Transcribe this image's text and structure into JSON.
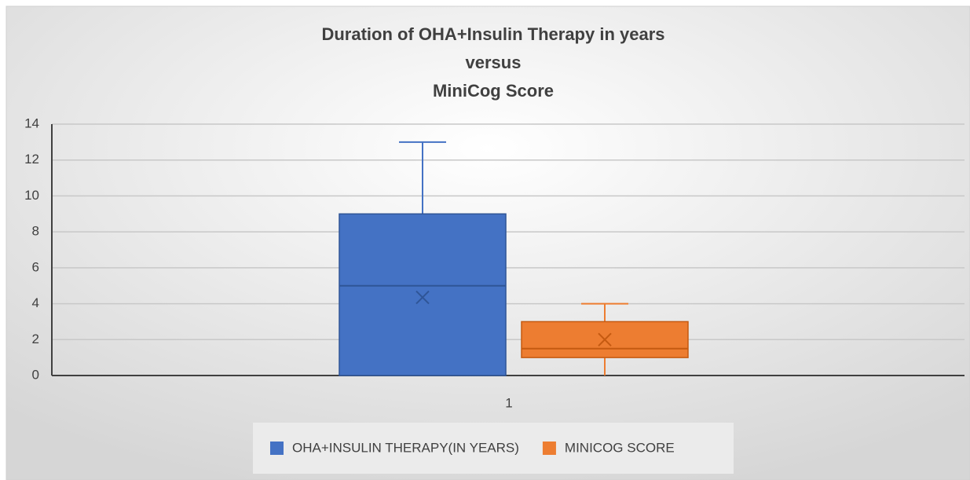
{
  "chart_data": {
    "type": "box",
    "title": [
      "Duration of OHA+Insulin Therapy in years",
      "versus",
      "MiniCog Score"
    ],
    "categories": [
      "1"
    ],
    "series": [
      {
        "name": "OHA+INSULIN THERAPY(IN YEARS)",
        "color": "#4472c4",
        "min": 0,
        "q1": 0,
        "median": 5,
        "q3": 9,
        "max": 13,
        "mean": 4.35
      },
      {
        "name": "MINICOG SCORE",
        "color": "#ed7d31",
        "min": 0,
        "q1": 1,
        "median": 1.5,
        "q3": 3,
        "max": 4,
        "mean": 2
      }
    ],
    "ylim": [
      0,
      14
    ],
    "yticks": [
      0,
      2,
      4,
      6,
      8,
      10,
      12,
      14
    ],
    "grid": true,
    "legend": "bottom"
  }
}
